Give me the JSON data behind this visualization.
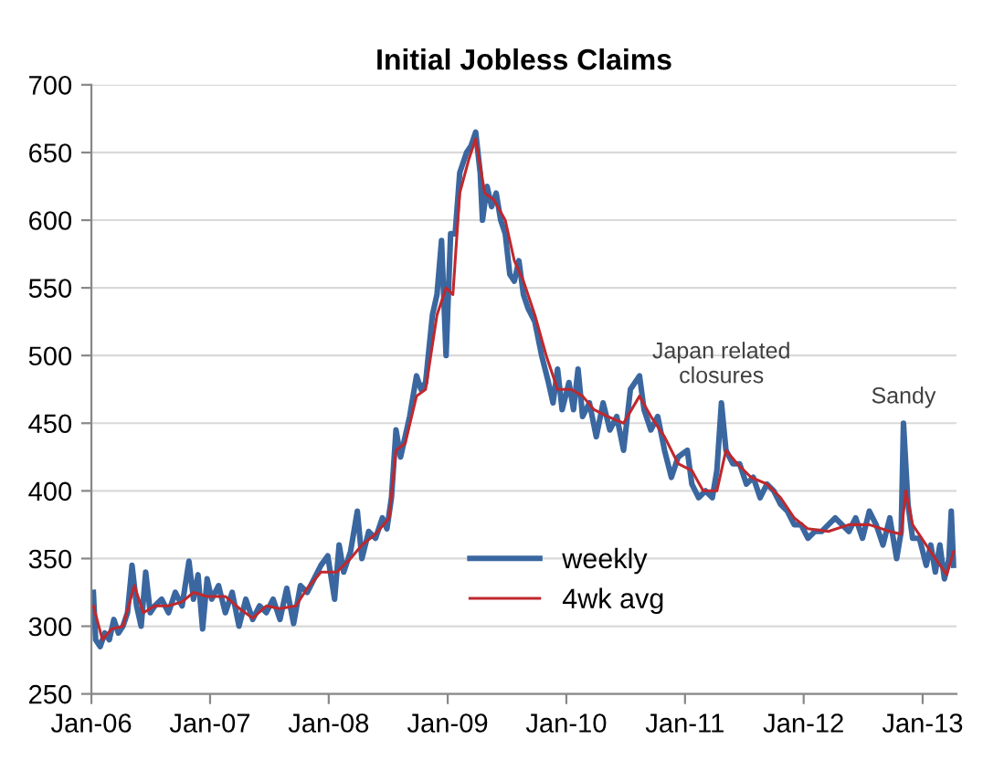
{
  "chart_data": {
    "type": "line",
    "title": "Initial Jobless Claims",
    "xlim": [
      "2006-01-01",
      "2013-04-15"
    ],
    "xticks": [
      {
        "value": "2006-01-01",
        "label": "Jan-06"
      },
      {
        "value": "2007-01-01",
        "label": "Jan-07"
      },
      {
        "value": "2008-01-01",
        "label": "Jan-08"
      },
      {
        "value": "2009-01-01",
        "label": "Jan-09"
      },
      {
        "value": "2010-01-01",
        "label": "Jan-10"
      },
      {
        "value": "2011-01-01",
        "label": "Jan-11"
      },
      {
        "value": "2012-01-01",
        "label": "Jan-12"
      },
      {
        "value": "2013-01-01",
        "label": "Jan-13"
      }
    ],
    "ylim": [
      250,
      700
    ],
    "yticks": [
      250,
      300,
      350,
      400,
      450,
      500,
      550,
      600,
      650,
      700
    ],
    "grid": "y",
    "legend": "bottom",
    "marker": "none",
    "line_style": "solid",
    "annotations": [
      {
        "text": "Japan related\nclosures",
        "x": "2011-04-23",
        "y": 465
      },
      {
        "text": "Sandy",
        "x": "2012-11-03",
        "y": 450
      }
    ],
    "series": [
      {
        "name": "weekly",
        "color": "#3a67a0",
        "x": [
          "2006-01-07",
          "2006-01-14",
          "2006-01-28",
          "2006-02-11",
          "2006-02-25",
          "2006-03-11",
          "2006-03-25",
          "2006-04-08",
          "2006-04-22",
          "2006-05-06",
          "2006-05-20",
          "2006-06-03",
          "2006-06-17",
          "2006-07-01",
          "2006-07-15",
          "2006-08-05",
          "2006-08-26",
          "2006-09-16",
          "2006-10-07",
          "2006-10-28",
          "2006-11-11",
          "2006-11-25",
          "2006-12-09",
          "2006-12-23",
          "2007-01-06",
          "2007-01-27",
          "2007-02-17",
          "2007-03-10",
          "2007-03-31",
          "2007-04-21",
          "2007-05-12",
          "2007-06-02",
          "2007-06-23",
          "2007-07-14",
          "2007-08-04",
          "2007-08-25",
          "2007-09-15",
          "2007-10-06",
          "2007-10-27",
          "2007-11-17",
          "2007-12-08",
          "2007-12-29",
          "2008-01-19",
          "2008-02-02",
          "2008-02-16",
          "2008-03-08",
          "2008-03-29",
          "2008-04-12",
          "2008-05-03",
          "2008-05-24",
          "2008-06-14",
          "2008-06-28",
          "2008-07-12",
          "2008-07-26",
          "2008-08-09",
          "2008-08-23",
          "2008-09-06",
          "2008-09-27",
          "2008-10-11",
          "2008-10-25",
          "2008-11-15",
          "2008-11-29",
          "2008-12-13",
          "2008-12-27",
          "2009-01-10",
          "2009-01-24",
          "2009-02-07",
          "2009-02-28",
          "2009-03-14",
          "2009-03-28",
          "2009-04-11",
          "2009-04-18",
          "2009-05-02",
          "2009-05-16",
          "2009-05-30",
          "2009-06-13",
          "2009-06-27",
          "2009-07-11",
          "2009-07-25",
          "2009-08-08",
          "2009-08-22",
          "2009-09-05",
          "2009-09-26",
          "2009-10-17",
          "2009-11-07",
          "2009-11-21",
          "2009-12-05",
          "2009-12-19",
          "2010-01-09",
          "2010-01-23",
          "2010-02-06",
          "2010-02-20",
          "2010-03-13",
          "2010-04-03",
          "2010-04-24",
          "2010-05-15",
          "2010-06-05",
          "2010-06-26",
          "2010-07-17",
          "2010-08-14",
          "2010-08-28",
          "2010-09-18",
          "2010-10-09",
          "2010-10-30",
          "2010-11-20",
          "2010-12-11",
          "2011-01-08",
          "2011-01-22",
          "2011-02-12",
          "2011-03-05",
          "2011-03-26",
          "2011-04-09",
          "2011-04-23",
          "2011-05-07",
          "2011-05-28",
          "2011-06-18",
          "2011-07-09",
          "2011-07-30",
          "2011-08-20",
          "2011-09-10",
          "2011-10-01",
          "2011-10-22",
          "2011-11-12",
          "2011-12-03",
          "2011-12-24",
          "2012-01-14",
          "2012-02-04",
          "2012-02-25",
          "2012-03-17",
          "2012-04-07",
          "2012-04-28",
          "2012-05-19",
          "2012-06-09",
          "2012-06-30",
          "2012-07-21",
          "2012-08-11",
          "2012-09-01",
          "2012-09-22",
          "2012-10-13",
          "2012-10-27",
          "2012-11-03",
          "2012-11-17",
          "2012-12-01",
          "2012-12-22",
          "2013-01-12",
          "2013-01-26",
          "2013-02-09",
          "2013-02-23",
          "2013-03-09",
          "2013-03-23",
          "2013-03-30",
          "2013-04-06"
        ],
        "values": [
          325,
          290,
          285,
          295,
          290,
          305,
          295,
          300,
          310,
          345,
          315,
          300,
          340,
          310,
          315,
          320,
          310,
          325,
          315,
          348,
          320,
          338,
          298,
          335,
          320,
          330,
          310,
          325,
          300,
          320,
          305,
          315,
          310,
          320,
          305,
          328,
          302,
          330,
          325,
          335,
          345,
          352,
          320,
          360,
          340,
          355,
          385,
          350,
          370,
          365,
          380,
          372,
          395,
          445,
          425,
          440,
          455,
          485,
          475,
          480,
          530,
          545,
          585,
          500,
          590,
          590,
          635,
          650,
          655,
          665,
          635,
          600,
          625,
          610,
          620,
          600,
          590,
          560,
          555,
          570,
          545,
          535,
          525,
          500,
          480,
          465,
          490,
          460,
          480,
          460,
          490,
          455,
          465,
          440,
          465,
          445,
          455,
          430,
          475,
          485,
          460,
          445,
          455,
          430,
          410,
          425,
          430,
          405,
          395,
          400,
          395,
          415,
          465,
          430,
          420,
          420,
          405,
          410,
          395,
          405,
          400,
          390,
          385,
          375,
          375,
          365,
          370,
          370,
          375,
          380,
          375,
          370,
          380,
          365,
          385,
          375,
          360,
          380,
          350,
          370,
          450,
          390,
          365,
          365,
          345,
          360,
          340,
          360,
          335,
          350,
          385,
          345
        ]
      },
      {
        "name": "4wk avg",
        "color": "#c0282d",
        "x": [
          "2006-01-07",
          "2006-02-04",
          "2006-03-04",
          "2006-04-08",
          "2006-05-13",
          "2006-06-10",
          "2006-07-15",
          "2006-08-26",
          "2006-10-07",
          "2006-11-11",
          "2006-12-23",
          "2007-02-17",
          "2007-04-07",
          "2007-05-12",
          "2007-06-23",
          "2007-08-04",
          "2007-09-22",
          "2007-10-27",
          "2007-12-08",
          "2008-01-26",
          "2008-03-08",
          "2008-04-12",
          "2008-05-24",
          "2008-07-05",
          "2008-07-26",
          "2008-08-23",
          "2008-09-27",
          "2008-10-25",
          "2008-11-29",
          "2008-12-27",
          "2009-01-17",
          "2009-02-07",
          "2009-03-07",
          "2009-03-28",
          "2009-04-25",
          "2009-05-23",
          "2009-06-27",
          "2009-07-25",
          "2009-08-22",
          "2009-09-26",
          "2009-10-31",
          "2009-12-05",
          "2010-01-16",
          "2010-02-20",
          "2010-03-27",
          "2010-05-08",
          "2010-06-26",
          "2010-08-14",
          "2010-09-18",
          "2010-10-30",
          "2010-12-11",
          "2011-01-22",
          "2011-02-26",
          "2011-04-09",
          "2011-05-07",
          "2011-06-11",
          "2011-07-23",
          "2011-09-10",
          "2011-10-22",
          "2011-12-03",
          "2012-01-14",
          "2012-03-17",
          "2012-05-19",
          "2012-07-21",
          "2012-09-22",
          "2012-10-27",
          "2012-11-10",
          "2012-12-01",
          "2013-01-12",
          "2013-02-09",
          "2013-03-16",
          "2013-04-06"
        ],
        "values": [
          315,
          290,
          298,
          300,
          330,
          310,
          315,
          315,
          318,
          325,
          322,
          322,
          312,
          306,
          315,
          313,
          315,
          328,
          340,
          340,
          350,
          360,
          368,
          380,
          430,
          435,
          470,
          475,
          530,
          550,
          545,
          620,
          645,
          660,
          620,
          615,
          600,
          570,
          555,
          530,
          500,
          475,
          475,
          470,
          460,
          455,
          450,
          470,
          455,
          440,
          420,
          415,
          400,
          400,
          430,
          420,
          410,
          405,
          395,
          380,
          372,
          370,
          375,
          375,
          370,
          368,
          400,
          375,
          360,
          350,
          338,
          355
        ]
      }
    ]
  }
}
